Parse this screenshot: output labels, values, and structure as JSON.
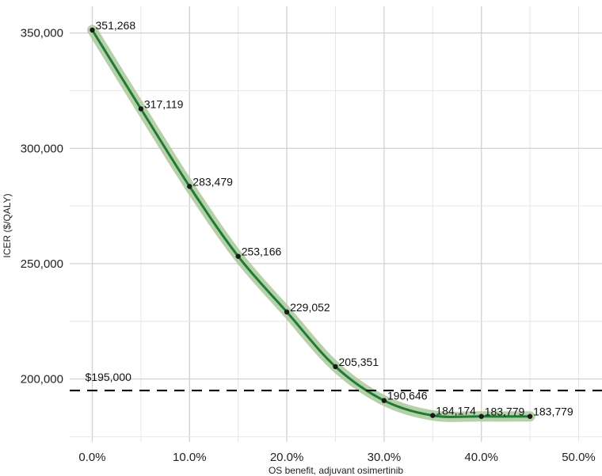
{
  "chart_data": {
    "type": "line",
    "xlabel": "OS benefit, adjuvant osimertinib",
    "ylabel": "ICER ($/QALY)",
    "x_ticks": [
      "0.0%",
      "10.0%",
      "20.0%",
      "30.0%",
      "40.0%",
      "50.0%"
    ],
    "y_ticks": [
      "200,000",
      "250,000",
      "300,000",
      "350,000"
    ],
    "xlim": [
      -0.02,
      0.52
    ],
    "ylim": [
      168000,
      360000
    ],
    "grid": true,
    "series": [
      {
        "x": [
          0.0,
          0.05,
          0.1,
          0.15,
          0.2,
          0.25,
          0.3,
          0.35,
          0.4,
          0.45
        ],
        "values": [
          351268,
          317119,
          283479,
          253166,
          229052,
          205351,
          190646,
          184174,
          183779,
          183779
        ],
        "labels": [
          "351,268",
          "317,119",
          "283,479",
          "253,166",
          "229,052",
          "205,351",
          "190,646",
          "184,174",
          "183,779",
          "183,779"
        ]
      }
    ],
    "smooth_fit_color": "#1f7a36",
    "ribbon_color": "#a9c99a",
    "threshold": {
      "value": 195000,
      "label": "$195,000",
      "style": "dashed",
      "color": "#000000"
    }
  }
}
